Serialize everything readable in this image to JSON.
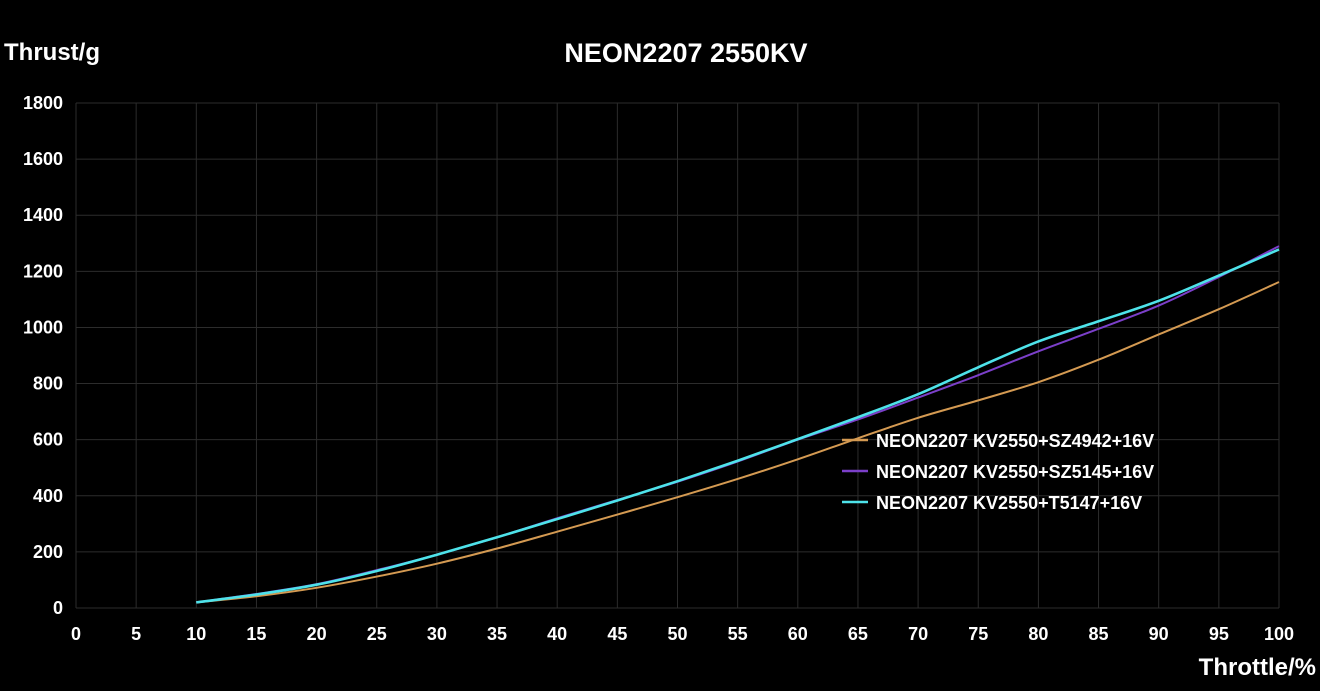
{
  "chart_data": {
    "type": "line",
    "title": "NEON2207 2550KV",
    "xlabel": "Throttle/%",
    "ylabel": "Thrust/g",
    "xlim": [
      0,
      100
    ],
    "ylim": [
      0,
      1800
    ],
    "xticks": [
      0,
      5,
      10,
      15,
      20,
      25,
      30,
      35,
      40,
      45,
      50,
      55,
      60,
      65,
      70,
      75,
      80,
      85,
      90,
      95,
      100
    ],
    "yticks": [
      0,
      200,
      400,
      600,
      800,
      1000,
      1200,
      1400,
      1600,
      1800
    ],
    "grid": true,
    "legend_position": "right-middle",
    "x": [
      10,
      15,
      20,
      25,
      30,
      35,
      40,
      45,
      50,
      55,
      60,
      65,
      70,
      75,
      80,
      85,
      90,
      95,
      100
    ],
    "series": [
      {
        "name": "NEON2207 KV2550+SZ4942+16V",
        "color": "#d49a52",
        "values": [
          20,
          42,
          72,
          112,
          158,
          212,
          272,
          333,
          395,
          460,
          530,
          605,
          678,
          740,
          805,
          885,
          975,
          1065,
          1162
        ]
      },
      {
        "name": "NEON2207 KV2550+SZ5145+16V",
        "color": "#7b3fc9",
        "values": [
          20,
          50,
          85,
          135,
          190,
          252,
          320,
          385,
          450,
          522,
          600,
          672,
          750,
          830,
          915,
          995,
          1078,
          1180,
          1290
        ]
      },
      {
        "name": "NEON2207 KV2550+T5147+16V",
        "color": "#4ee3ea",
        "values": [
          20,
          48,
          83,
          132,
          190,
          252,
          317,
          383,
          452,
          525,
          602,
          680,
          762,
          858,
          950,
          1022,
          1095,
          1185,
          1278
        ]
      }
    ]
  }
}
